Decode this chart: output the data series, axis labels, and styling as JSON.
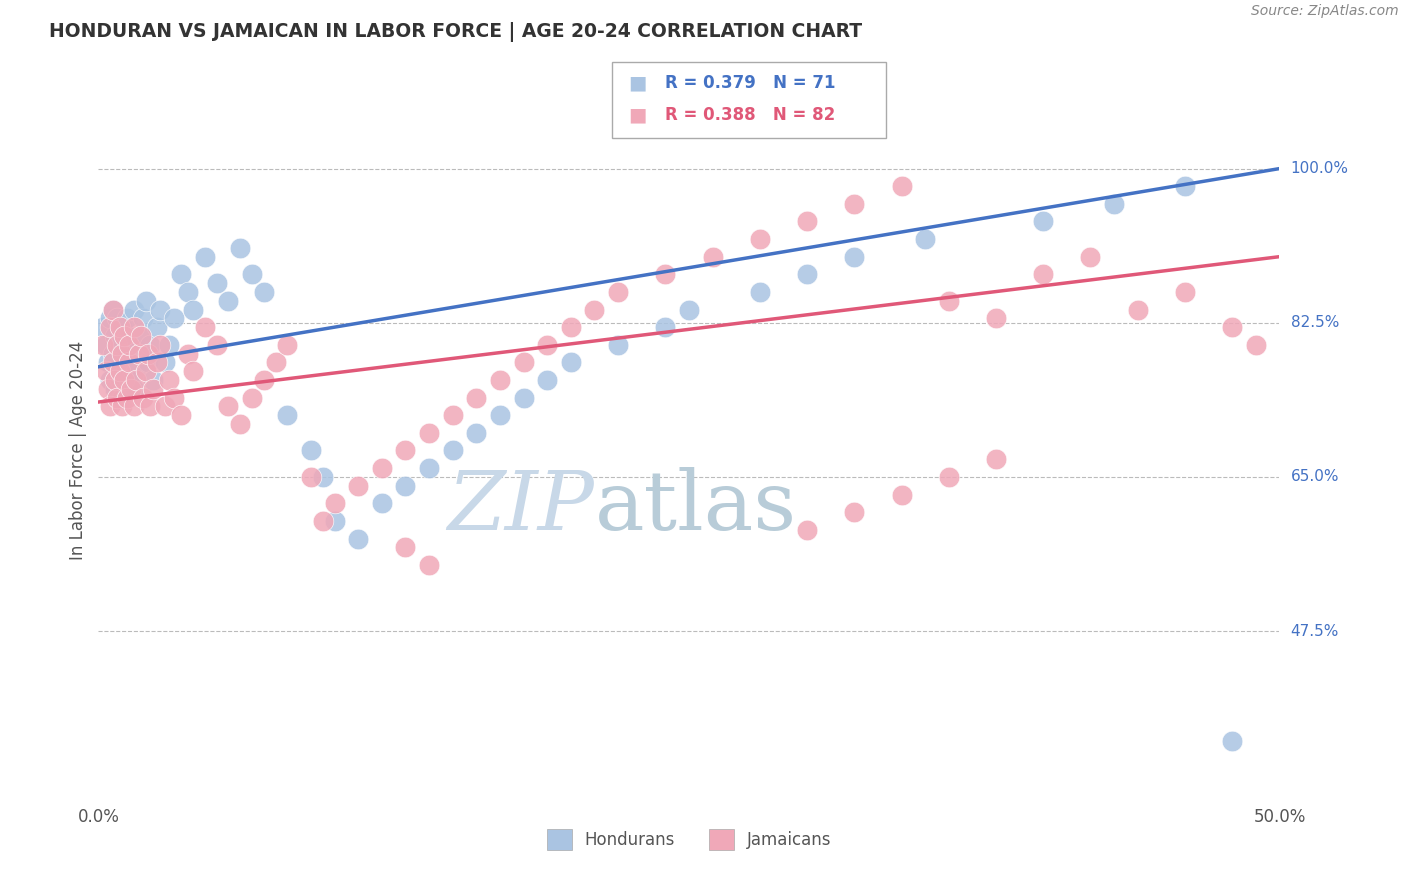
{
  "title": "HONDURAN VS JAMAICAN IN LABOR FORCE | AGE 20-24 CORRELATION CHART",
  "source": "Source: ZipAtlas.com",
  "ylabel": "In Labor Force | Age 20-24",
  "xlim": [
    0.0,
    0.5
  ],
  "ylim": [
    0.28,
    1.08
  ],
  "xtick_labels": [
    "0.0%",
    "50.0%"
  ],
  "xtick_vals": [
    0.0,
    0.5
  ],
  "ytick_labels": [
    "47.5%",
    "65.0%",
    "82.5%",
    "100.0%"
  ],
  "ytick_vals": [
    0.475,
    0.65,
    0.825,
    1.0
  ],
  "blue_r": 0.379,
  "blue_n": 71,
  "pink_r": 0.388,
  "pink_n": 82,
  "blue_color": "#aac4e2",
  "pink_color": "#f0a8b8",
  "blue_line_color": "#4472c4",
  "pink_line_color": "#e05878",
  "watermark_color": "#c8d8e8",
  "blue_line_x": [
    0.0,
    0.5
  ],
  "blue_line_y": [
    0.775,
    1.0
  ],
  "pink_line_x": [
    0.0,
    0.5
  ],
  "pink_line_y": [
    0.735,
    0.9
  ],
  "blue_points_x": [
    0.002,
    0.003,
    0.004,
    0.005,
    0.005,
    0.006,
    0.006,
    0.007,
    0.007,
    0.008,
    0.008,
    0.009,
    0.009,
    0.01,
    0.01,
    0.011,
    0.011,
    0.012,
    0.012,
    0.013,
    0.013,
    0.014,
    0.015,
    0.015,
    0.016,
    0.017,
    0.018,
    0.019,
    0.02,
    0.021,
    0.022,
    0.023,
    0.025,
    0.026,
    0.028,
    0.03,
    0.032,
    0.035,
    0.038,
    0.04,
    0.045,
    0.05,
    0.055,
    0.06,
    0.065,
    0.07,
    0.08,
    0.09,
    0.095,
    0.1,
    0.11,
    0.12,
    0.13,
    0.14,
    0.15,
    0.16,
    0.17,
    0.18,
    0.19,
    0.2,
    0.22,
    0.24,
    0.25,
    0.28,
    0.3,
    0.32,
    0.35,
    0.4,
    0.43,
    0.46,
    0.48
  ],
  "blue_points_y": [
    0.82,
    0.8,
    0.78,
    0.76,
    0.83,
    0.79,
    0.84,
    0.75,
    0.81,
    0.77,
    0.83,
    0.76,
    0.8,
    0.74,
    0.82,
    0.79,
    0.77,
    0.81,
    0.83,
    0.78,
    0.76,
    0.8,
    0.75,
    0.84,
    0.77,
    0.79,
    0.81,
    0.83,
    0.85,
    0.78,
    0.8,
    0.76,
    0.82,
    0.84,
    0.78,
    0.8,
    0.83,
    0.88,
    0.86,
    0.84,
    0.9,
    0.87,
    0.85,
    0.91,
    0.88,
    0.86,
    0.72,
    0.68,
    0.65,
    0.6,
    0.58,
    0.62,
    0.64,
    0.66,
    0.68,
    0.7,
    0.72,
    0.74,
    0.76,
    0.78,
    0.8,
    0.82,
    0.84,
    0.86,
    0.88,
    0.9,
    0.92,
    0.94,
    0.96,
    0.98,
    0.35
  ],
  "pink_points_x": [
    0.002,
    0.003,
    0.004,
    0.005,
    0.005,
    0.006,
    0.006,
    0.007,
    0.008,
    0.008,
    0.009,
    0.009,
    0.01,
    0.01,
    0.011,
    0.011,
    0.012,
    0.013,
    0.013,
    0.014,
    0.015,
    0.015,
    0.016,
    0.017,
    0.018,
    0.019,
    0.02,
    0.021,
    0.022,
    0.023,
    0.025,
    0.026,
    0.028,
    0.03,
    0.032,
    0.035,
    0.038,
    0.04,
    0.045,
    0.05,
    0.055,
    0.06,
    0.065,
    0.07,
    0.075,
    0.08,
    0.09,
    0.095,
    0.1,
    0.11,
    0.12,
    0.13,
    0.14,
    0.15,
    0.16,
    0.17,
    0.18,
    0.19,
    0.2,
    0.21,
    0.22,
    0.24,
    0.26,
    0.28,
    0.3,
    0.32,
    0.34,
    0.36,
    0.38,
    0.4,
    0.42,
    0.44,
    0.46,
    0.48,
    0.49,
    0.13,
    0.14,
    0.3,
    0.32,
    0.34,
    0.36,
    0.38
  ],
  "pink_points_y": [
    0.8,
    0.77,
    0.75,
    0.73,
    0.82,
    0.78,
    0.84,
    0.76,
    0.74,
    0.8,
    0.77,
    0.82,
    0.73,
    0.79,
    0.76,
    0.81,
    0.74,
    0.78,
    0.8,
    0.75,
    0.73,
    0.82,
    0.76,
    0.79,
    0.81,
    0.74,
    0.77,
    0.79,
    0.73,
    0.75,
    0.78,
    0.8,
    0.73,
    0.76,
    0.74,
    0.72,
    0.79,
    0.77,
    0.82,
    0.8,
    0.73,
    0.71,
    0.74,
    0.76,
    0.78,
    0.8,
    0.65,
    0.6,
    0.62,
    0.64,
    0.66,
    0.68,
    0.7,
    0.72,
    0.74,
    0.76,
    0.78,
    0.8,
    0.82,
    0.84,
    0.86,
    0.88,
    0.9,
    0.92,
    0.94,
    0.96,
    0.98,
    0.85,
    0.83,
    0.88,
    0.9,
    0.84,
    0.86,
    0.82,
    0.8,
    0.57,
    0.55,
    0.59,
    0.61,
    0.63,
    0.65,
    0.67
  ]
}
